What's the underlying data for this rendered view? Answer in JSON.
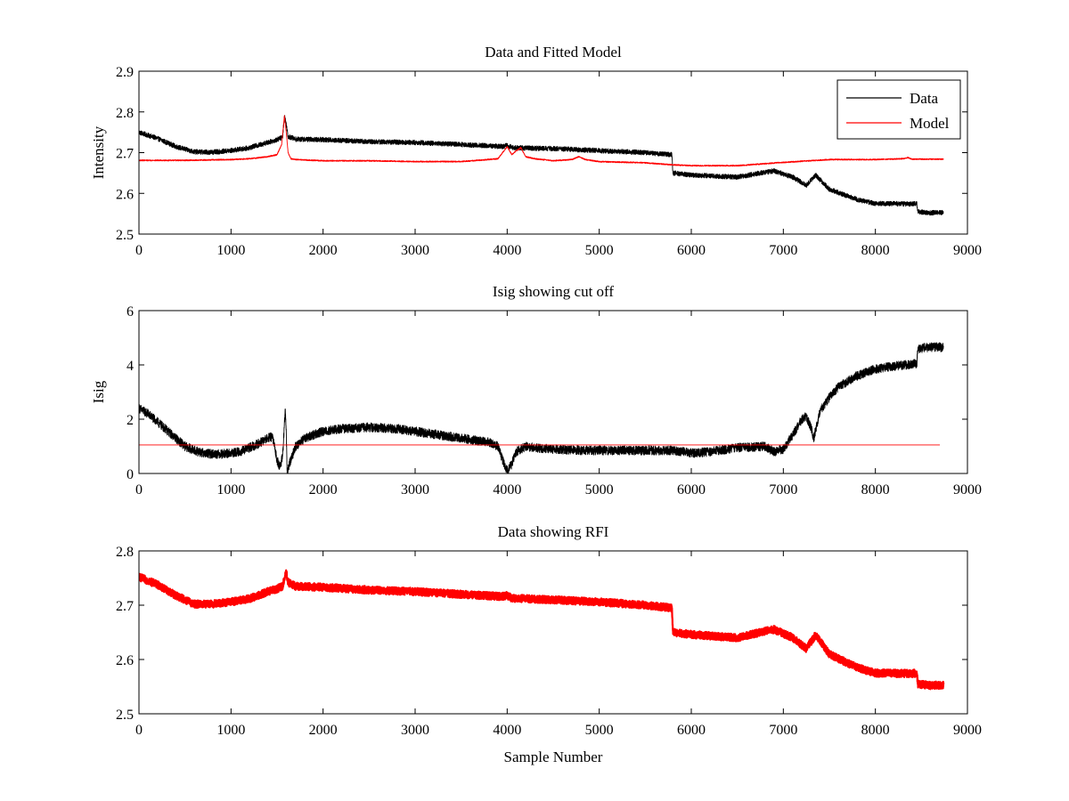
{
  "figure": {
    "background": "#ffffff"
  },
  "chart_data": [
    {
      "type": "line",
      "title": "Data and Fitted Model",
      "xlabel": "",
      "ylabel": "Intensity",
      "xlim": [
        0,
        9000
      ],
      "ylim": [
        2.5,
        2.9
      ],
      "xticks": [
        0,
        1000,
        2000,
        3000,
        4000,
        5000,
        6000,
        7000,
        8000,
        9000
      ],
      "xtick_labels": [
        "0",
        "1000",
        "2000",
        "3000",
        "4000",
        "5000",
        "6000",
        "7000",
        "8000",
        "9000"
      ],
      "yticks": [
        2.5,
        2.6,
        2.7,
        2.8,
        2.9
      ],
      "ytick_labels": [
        "2.5",
        "2.6",
        "2.7",
        "2.8",
        "2.9"
      ],
      "grid": false,
      "legend": {
        "placement": "top-right",
        "entries": [
          "Data",
          "Model"
        ]
      },
      "series": [
        {
          "name": "Data",
          "color": "#000000",
          "noise": 0.006,
          "x": [
            0,
            200,
            400,
            600,
            800,
            1000,
            1200,
            1400,
            1500,
            1560,
            1580,
            1600,
            1620,
            1700,
            2000,
            2500,
            3000,
            3500,
            3950,
            4000,
            4050,
            4500,
            5000,
            5500,
            5790,
            5800,
            6000,
            6500,
            6800,
            6900,
            7100,
            7250,
            7350,
            7500,
            7800,
            8000,
            8400,
            8450,
            8460,
            8600,
            8740
          ],
          "y": [
            2.75,
            2.735,
            2.715,
            2.702,
            2.701,
            2.705,
            2.712,
            2.725,
            2.732,
            2.738,
            2.79,
            2.77,
            2.74,
            2.733,
            2.732,
            2.727,
            2.725,
            2.72,
            2.715,
            2.718,
            2.712,
            2.71,
            2.705,
            2.7,
            2.695,
            2.65,
            2.645,
            2.64,
            2.652,
            2.655,
            2.64,
            2.62,
            2.645,
            2.61,
            2.585,
            2.575,
            2.574,
            2.575,
            2.555,
            2.552,
            2.553
          ]
        },
        {
          "name": "Model",
          "color": "#ff0000",
          "noise": 0.0015,
          "x": [
            0,
            500,
            1000,
            1200,
            1400,
            1500,
            1550,
            1580,
            1600,
            1620,
            1650,
            1700,
            2000,
            2500,
            3000,
            3500,
            3900,
            4000,
            4050,
            4100,
            4150,
            4200,
            4300,
            4500,
            4700,
            4780,
            4850,
            5000,
            5500,
            5800,
            6000,
            6500,
            7000,
            7500,
            8000,
            8300,
            8350,
            8400,
            8740
          ],
          "y": [
            2.681,
            2.681,
            2.683,
            2.685,
            2.69,
            2.695,
            2.72,
            2.79,
            2.75,
            2.7,
            2.685,
            2.683,
            2.68,
            2.68,
            2.678,
            2.678,
            2.685,
            2.715,
            2.695,
            2.705,
            2.712,
            2.69,
            2.685,
            2.68,
            2.683,
            2.69,
            2.683,
            2.678,
            2.675,
            2.67,
            2.668,
            2.668,
            2.676,
            2.683,
            2.683,
            2.685,
            2.688,
            2.684,
            2.684
          ]
        }
      ]
    },
    {
      "type": "line",
      "title": "Isig showing cut off",
      "xlabel": "",
      "ylabel": "Isig",
      "xlim": [
        0,
        9000
      ],
      "ylim": [
        0,
        6
      ],
      "xticks": [
        0,
        1000,
        2000,
        3000,
        4000,
        5000,
        6000,
        7000,
        8000,
        9000
      ],
      "xtick_labels": [
        "0",
        "1000",
        "2000",
        "3000",
        "4000",
        "5000",
        "6000",
        "7000",
        "8000",
        "9000"
      ],
      "yticks": [
        0,
        2,
        4,
        6
      ],
      "ytick_labels": [
        "0",
        "2",
        "4",
        "6"
      ],
      "grid": false,
      "series": [
        {
          "color": "#000000",
          "noise": 0.17,
          "x": [
            0,
            100,
            200,
            300,
            400,
            500,
            600,
            700,
            800,
            900,
            1000,
            1100,
            1200,
            1300,
            1400,
            1450,
            1500,
            1530,
            1560,
            1590,
            1600,
            1610,
            1630,
            1700,
            1800,
            2000,
            2200,
            2500,
            2800,
            3000,
            3200,
            3500,
            3800,
            3900,
            3950,
            4000,
            4050,
            4100,
            4200,
            4300,
            4500,
            4800,
            5000,
            5500,
            5800,
            6000,
            6200,
            6500,
            6800,
            6900,
            7000,
            7100,
            7200,
            7250,
            7300,
            7330,
            7400,
            7500,
            7600,
            7800,
            8000,
            8200,
            8450,
            8460,
            8600,
            8740
          ],
          "y": [
            2.4,
            2.2,
            1.9,
            1.6,
            1.3,
            1.0,
            0.85,
            0.75,
            0.72,
            0.72,
            0.75,
            0.8,
            0.95,
            1.1,
            1.3,
            1.35,
            0.5,
            0.25,
            0.6,
            2.4,
            1.5,
            0.0,
            0.3,
            1.0,
            1.3,
            1.55,
            1.65,
            1.7,
            1.65,
            1.55,
            1.45,
            1.3,
            1.15,
            1.0,
            0.5,
            0.1,
            0.35,
            0.8,
            1.0,
            0.95,
            0.9,
            0.85,
            0.85,
            0.85,
            0.85,
            0.75,
            0.8,
            0.95,
            1.0,
            0.8,
            0.9,
            1.4,
            2.0,
            2.1,
            1.7,
            1.3,
            2.3,
            2.8,
            3.2,
            3.6,
            3.85,
            3.95,
            4.05,
            4.6,
            4.65,
            4.65
          ]
        },
        {
          "color": "#ff0000",
          "noise": 0,
          "x": [
            0,
            8740
          ],
          "y": [
            1.05,
            1.05
          ]
        }
      ]
    },
    {
      "type": "line",
      "title": "Data showing RFI",
      "xlabel": "Sample Number",
      "ylabel": "",
      "xlim": [
        0,
        9000
      ],
      "ylim": [
        2.5,
        2.8
      ],
      "xticks": [
        0,
        1000,
        2000,
        3000,
        4000,
        5000,
        6000,
        7000,
        8000,
        9000
      ],
      "xtick_labels": [
        "0",
        "1000",
        "2000",
        "3000",
        "4000",
        "5000",
        "6000",
        "7000",
        "8000",
        "9000"
      ],
      "yticks": [
        2.5,
        2.6,
        2.7,
        2.8
      ],
      "ytick_labels": [
        "2.5",
        "2.6",
        "2.7",
        "2.8"
      ],
      "grid": false,
      "series": [
        {
          "color": "#ff0000",
          "noise": 0.007,
          "thick": true,
          "x": [
            0,
            200,
            400,
            600,
            800,
            1000,
            1200,
            1400,
            1500,
            1560,
            1600,
            1620,
            1700,
            2000,
            2500,
            3000,
            3500,
            3950,
            4000,
            4050,
            4500,
            5000,
            5500,
            5790,
            5800,
            6000,
            6500,
            6800,
            6900,
            7100,
            7250,
            7350,
            7500,
            7800,
            8000,
            8400,
            8450,
            8460,
            8600,
            8740
          ],
          "y": [
            2.752,
            2.738,
            2.718,
            2.702,
            2.702,
            2.706,
            2.712,
            2.725,
            2.73,
            2.735,
            2.76,
            2.742,
            2.735,
            2.733,
            2.728,
            2.725,
            2.72,
            2.716,
            2.718,
            2.713,
            2.71,
            2.706,
            2.7,
            2.695,
            2.65,
            2.646,
            2.64,
            2.652,
            2.655,
            2.64,
            2.62,
            2.645,
            2.61,
            2.585,
            2.575,
            2.574,
            2.575,
            2.555,
            2.552,
            2.553
          ]
        }
      ]
    }
  ]
}
